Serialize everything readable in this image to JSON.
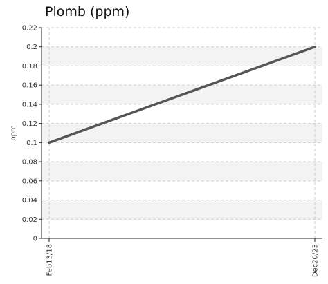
{
  "chart_data": {
    "type": "line",
    "title": "Plomb (ppm)",
    "ylabel": "ppm",
    "xlabel": "",
    "x": [
      "Feb13/18",
      "Dec20/23"
    ],
    "series": [
      {
        "values": [
          0.1,
          0.2
        ]
      }
    ],
    "ylim": [
      0,
      0.22
    ],
    "y_ticks": [
      "0",
      "0.02",
      "0.04",
      "0.06",
      "0.08",
      "0.1",
      "0.12",
      "0.14",
      "0.16",
      "0.18",
      "0.2",
      "0.22"
    ],
    "grid": true,
    "legend": "none",
    "colors": {
      "line": "#555555",
      "band": "#f3f3f3",
      "grid": "#cccccc",
      "axis": "#222222"
    }
  }
}
